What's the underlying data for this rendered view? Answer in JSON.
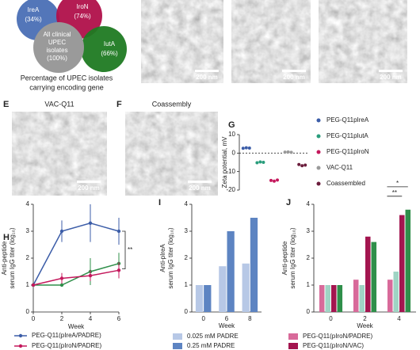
{
  "venn": {
    "sets": [
      {
        "label": "IreA",
        "value_label": "(34%)",
        "color": "#4a6fb5"
      },
      {
        "label": "IroN",
        "value_label": "(74%)",
        "color": "#b0104a"
      },
      {
        "label": "IutA",
        "value_label": "(66%)",
        "color": "#1f7a22"
      }
    ],
    "center": [
      "All clinical",
      "UPEC",
      "isolates",
      "(100%)"
    ],
    "center_color": "#9a9a9a",
    "caption": [
      "Percentage of UPEC isolates",
      "carrying encoding gene"
    ]
  },
  "top_images": [
    {
      "scale_bar": "200 nm"
    },
    {
      "scale_bar": "200 nm"
    },
    {
      "scale_bar": "200 nm"
    }
  ],
  "panels": [
    {
      "letter": "E",
      "title": "VAC-Q11",
      "scale_bar": "200 nm"
    },
    {
      "letter": "F",
      "title": "Coassembly",
      "scale_bar": "200 nm"
    }
  ],
  "chart_data": [
    {
      "type": "dot",
      "letter": "G",
      "ylabel": "Zeta potential, mV",
      "ylim": [
        -20,
        10
      ],
      "yticks": [
        10,
        0,
        -10,
        -20
      ],
      "series": [
        {
          "name": "PEG-Q11pIreA",
          "color": "#3c5da8",
          "values": [
            2.6,
            2.9,
            2.7
          ]
        },
        {
          "name": "PEG-Q11pIutA",
          "color": "#2a9d7c",
          "values": [
            -5.2,
            -4.8,
            -5.0
          ]
        },
        {
          "name": "PEG-Q11pIroN",
          "color": "#c4185c",
          "values": [
            -14.8,
            -15.2,
            -14.6
          ]
        },
        {
          "name": "VAC-Q11",
          "color": "#9a9a9a",
          "values": [
            0.5,
            0.6,
            0.4
          ]
        },
        {
          "name": "Coassembled",
          "color": "#6b1d3c",
          "values": [
            -6.2,
            -6.8,
            -6.5
          ]
        }
      ]
    },
    {
      "type": "line",
      "letter": "H",
      "ylabel": [
        "Anti-peptide",
        "serum IgG titer (log₁₀)"
      ],
      "xlabel": "Week",
      "x": [
        0,
        2,
        4,
        6
      ],
      "xlim": [
        0,
        6
      ],
      "xticks": [
        0,
        2,
        4,
        6
      ],
      "ylim": [
        0,
        4
      ],
      "yticks": [
        0,
        1,
        2,
        3,
        4
      ],
      "annotation": "**",
      "series": [
        {
          "name": "PEG-Q11(pIreA/PADRE)",
          "color": "#3c5da8",
          "values": [
            1,
            3,
            3.3,
            3
          ],
          "errors": [
            0,
            0.4,
            0.7,
            0.5
          ]
        },
        {
          "color": "#2f8f4a",
          "values": [
            1,
            1,
            1.5,
            1.8
          ],
          "errors": [
            0,
            0,
            0.5,
            0.4
          ]
        },
        {
          "name": "PEG-Q11(pIroN/PADRE)",
          "color": "#c4185c",
          "values": [
            1,
            1.25,
            1.35,
            1.55
          ],
          "errors": [
            0,
            0.2,
            0.2,
            0.3
          ]
        }
      ]
    },
    {
      "type": "bar",
      "letter": "I",
      "ylabel": [
        "Anti-pIreA",
        "serum IgG titer (log₁₀)"
      ],
      "xlabel": "Week",
      "categories": [
        "0",
        "6",
        "8"
      ],
      "ylim": [
        0,
        4
      ],
      "yticks": [
        0,
        1,
        2,
        3,
        4
      ],
      "series": [
        {
          "name": "0.025 mM PADRE",
          "color": "#b7c8e6",
          "values": [
            1,
            1.7,
            1.8
          ]
        },
        {
          "name": "0.25 mM PADRE",
          "color": "#5d84c2",
          "values": [
            1,
            3,
            3.5
          ]
        }
      ]
    },
    {
      "type": "bar",
      "letter": "J",
      "ylabel": [
        "Anti-peptide",
        "serum IgG titer (log₁₀)"
      ],
      "xlabel": "Week",
      "categories": [
        "0",
        "2",
        "4"
      ],
      "ylim": [
        0,
        4
      ],
      "yticks": [
        0,
        1,
        2,
        3,
        4
      ],
      "annotations": [
        "**",
        "*"
      ],
      "series": [
        {
          "name": "PEG-Q11(pIroN/PADRE)",
          "color": "#d86a9a",
          "values": [
            1,
            1.2,
            1.2
          ]
        },
        {
          "color": "#9fd4c4",
          "values": [
            1,
            1,
            1.5
          ]
        },
        {
          "name": "PEG-Q11(pIroN/VAC)",
          "color": "#a3154f",
          "values": [
            1,
            2.8,
            3.6
          ]
        },
        {
          "color": "#2f8f4a",
          "values": [
            1,
            2.6,
            3.8
          ]
        }
      ]
    }
  ]
}
